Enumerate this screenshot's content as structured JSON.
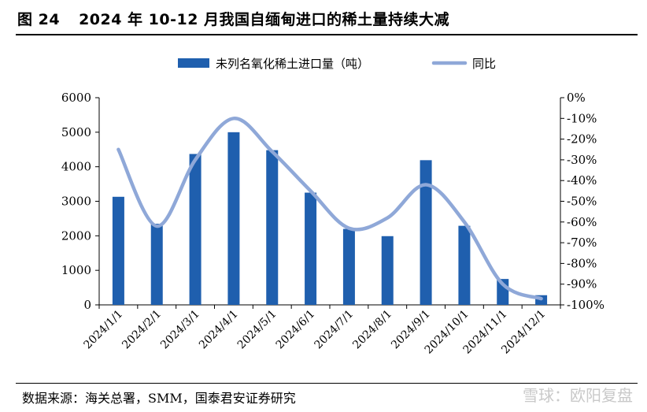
{
  "header": {
    "figure_label": "图 24",
    "title": "2024 年 10-12 月我国自缅甸进口的稀土量持续大减"
  },
  "footer": {
    "source": "数据来源：海关总署，SMM，国泰君安证券研究",
    "watermark": "雪球：欧阳复盘"
  },
  "chart_data": {
    "type": "bar+line",
    "categories": [
      "2024/1/1",
      "2024/2/1",
      "2024/3/1",
      "2024/4/1",
      "2024/5/1",
      "2024/6/1",
      "2024/7/1",
      "2024/8/1",
      "2024/9/1",
      "2024/10/1",
      "2024/11/1",
      "2024/12/1"
    ],
    "series": [
      {
        "name": "未列名氧化稀土进口量（吨）",
        "type": "bar",
        "axis": "left",
        "color": "#1f5fae",
        "values": [
          3130,
          2350,
          4370,
          5000,
          4480,
          3250,
          2200,
          1990,
          4190,
          2290,
          750,
          280
        ]
      },
      {
        "name": "同比",
        "type": "line",
        "axis": "right",
        "color": "#8fa8d8",
        "values": [
          -25,
          -62,
          -30,
          -10,
          -26,
          -45,
          -63,
          -58,
          -42,
          -60,
          -90,
          -97
        ]
      }
    ],
    "y_left": {
      "min": 0,
      "max": 6000,
      "ticks": [
        0,
        1000,
        2000,
        3000,
        4000,
        5000,
        6000
      ]
    },
    "y_right": {
      "min": -100,
      "max": 0,
      "ticks": [
        0,
        -10,
        -20,
        -30,
        -40,
        -50,
        -60,
        -70,
        -80,
        -90,
        -100
      ],
      "format": "percent"
    },
    "legend_position": "top-center",
    "grid": false
  }
}
